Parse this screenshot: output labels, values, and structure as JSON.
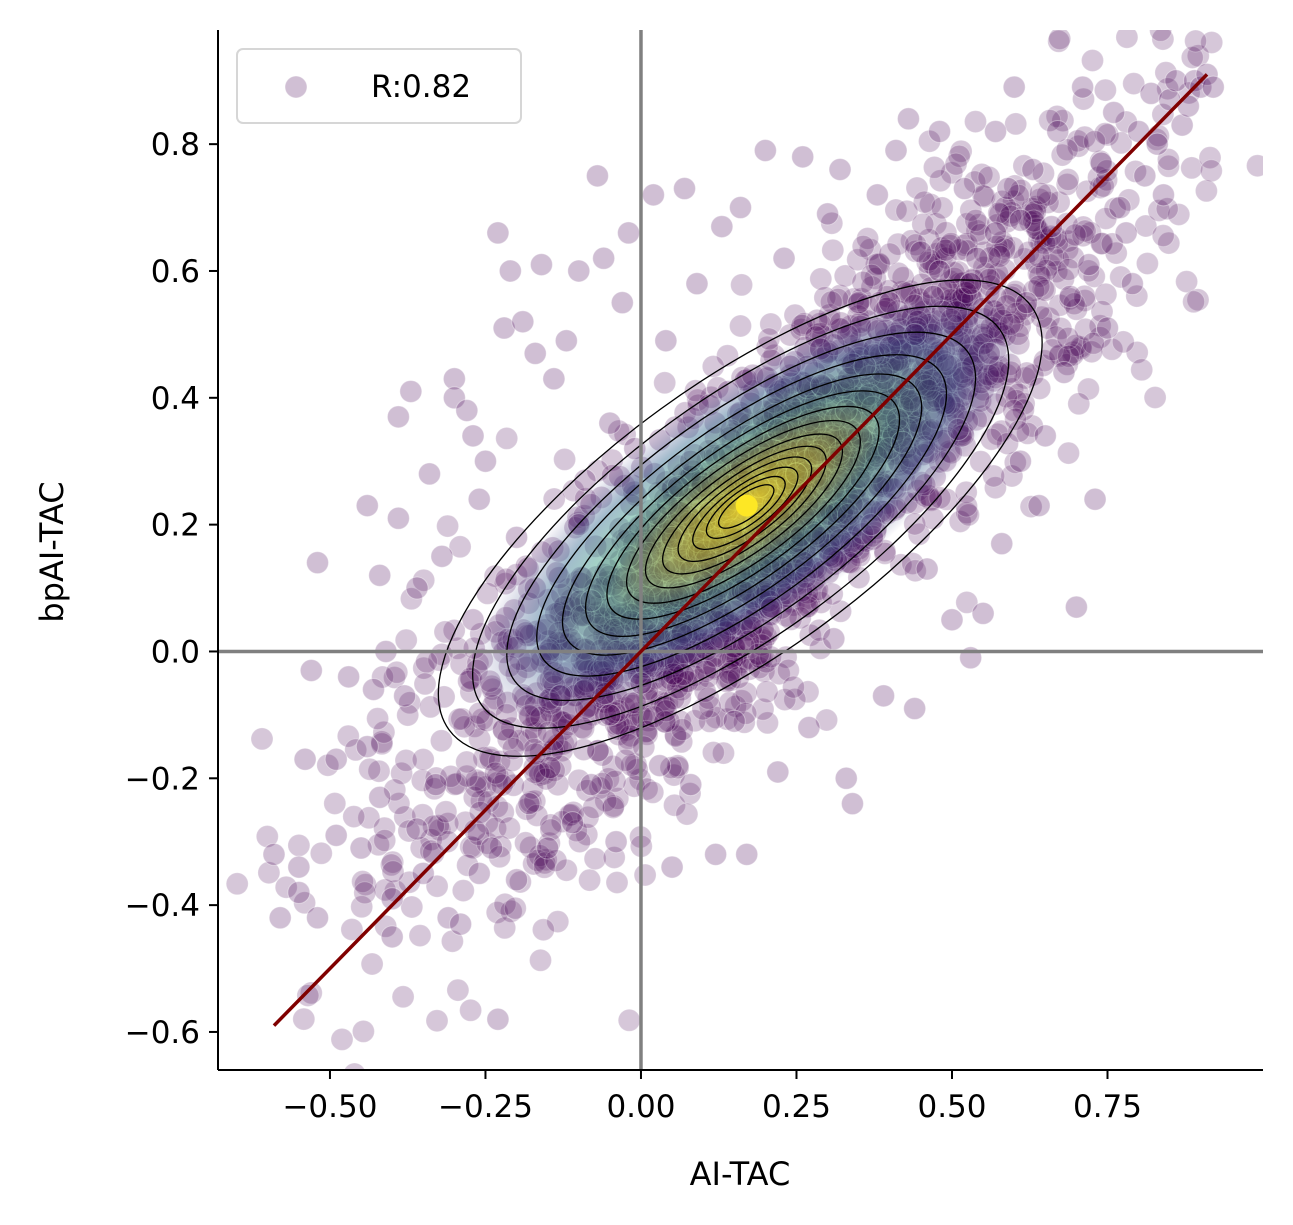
{
  "chart_data": {
    "type": "scatter",
    "xlabel": "AI-TAC",
    "ylabel": "bpAI-TAC",
    "xlim": [
      -0.68,
      1.0
    ],
    "ylim": [
      -0.66,
      0.98
    ],
    "xticks": [
      -0.5,
      -0.25,
      0.0,
      0.25,
      0.5,
      0.75
    ],
    "xtick_labels": [
      "−0.50",
      "−0.25",
      "0.00",
      "0.25",
      "0.50",
      "0.75"
    ],
    "yticks": [
      -0.6,
      -0.4,
      -0.2,
      0.0,
      0.2,
      0.4,
      0.6,
      0.8
    ],
    "ytick_labels": [
      "−0.6",
      "−0.4",
      "−0.2",
      "0.0",
      "0.2",
      "0.4",
      "0.6",
      "0.8"
    ],
    "legend": {
      "label": "R:0.82",
      "placement": "upper-left"
    },
    "reference_lines": {
      "x": 0.0,
      "y": 0.0,
      "color": "#808080"
    },
    "identity_line": {
      "from": [
        -0.59,
        -0.59
      ],
      "to": [
        0.91,
        0.91
      ],
      "color": "#800000"
    },
    "density_peak": {
      "x": 0.17,
      "y": 0.23,
      "color": "#fde725"
    },
    "series": [
      {
        "name": "R:0.82",
        "color": "#440154",
        "points": [
          [
            -0.59,
            -0.32
          ],
          [
            -0.58,
            -0.42
          ],
          [
            -0.55,
            -0.38
          ],
          [
            -0.55,
            -0.34
          ],
          [
            -0.52,
            -0.42
          ],
          [
            -0.52,
            0.14
          ],
          [
            -0.53,
            -0.03
          ],
          [
            -0.54,
            -0.17
          ],
          [
            -0.49,
            -0.17
          ],
          [
            -0.49,
            -0.29
          ],
          [
            -0.47,
            -0.04
          ],
          [
            -0.45,
            -0.31
          ],
          [
            -0.44,
            -0.15
          ],
          [
            -0.43,
            -0.06
          ],
          [
            -0.42,
            -0.23
          ],
          [
            -0.42,
            0.12
          ],
          [
            -0.41,
            0.0
          ],
          [
            -0.4,
            -0.45
          ],
          [
            -0.4,
            -0.39
          ],
          [
            -0.39,
            0.21
          ],
          [
            -0.39,
            0.37
          ],
          [
            -0.38,
            -0.07
          ],
          [
            -0.37,
            0.41
          ],
          [
            -0.36,
            -0.28
          ],
          [
            -0.35,
            -0.35
          ],
          [
            -0.34,
            0.28
          ],
          [
            -0.33,
            -0.21
          ],
          [
            -0.31,
            -0.42
          ],
          [
            -0.3,
            0.43
          ],
          [
            -0.3,
            0.4
          ],
          [
            -0.29,
            -0.43
          ],
          [
            -0.28,
            0.38
          ],
          [
            -0.27,
            0.34
          ],
          [
            -0.26,
            0.24
          ],
          [
            -0.26,
            -0.35
          ],
          [
            -0.25,
            0.3
          ],
          [
            -0.24,
            -0.31
          ],
          [
            -0.23,
            0.66
          ],
          [
            -0.23,
            -0.58
          ],
          [
            -0.22,
            0.51
          ],
          [
            -0.21,
            0.6
          ],
          [
            -0.2,
            -0.36
          ],
          [
            -0.19,
            0.52
          ],
          [
            -0.18,
            -0.24
          ],
          [
            -0.17,
            0.47
          ],
          [
            -0.16,
            0.61
          ],
          [
            -0.15,
            -0.31
          ],
          [
            -0.14,
            0.43
          ],
          [
            -0.12,
            0.49
          ],
          [
            -0.11,
            -0.27
          ],
          [
            -0.1,
            0.6
          ],
          [
            -0.09,
            0.27
          ],
          [
            -0.08,
            -0.21
          ],
          [
            -0.07,
            0.75
          ],
          [
            -0.06,
            0.62
          ],
          [
            -0.05,
            0.36
          ],
          [
            -0.04,
            -0.3
          ],
          [
            -0.03,
            0.55
          ],
          [
            -0.02,
            0.66
          ],
          [
            -0.01,
            0.32
          ],
          [
            0.0,
            -0.05
          ],
          [
            0.02,
            0.72
          ],
          [
            0.03,
            -0.18
          ],
          [
            0.04,
            0.49
          ],
          [
            0.05,
            -0.34
          ],
          [
            0.06,
            0.26
          ],
          [
            0.07,
            0.73
          ],
          [
            0.08,
            -0.21
          ],
          [
            0.09,
            0.58
          ],
          [
            0.1,
            0.11
          ],
          [
            0.12,
            -0.32
          ],
          [
            0.13,
            0.67
          ],
          [
            0.14,
            0.41
          ],
          [
            0.15,
            -0.11
          ],
          [
            0.16,
            0.7
          ],
          [
            0.17,
            -0.32
          ],
          [
            0.18,
            0.34
          ],
          [
            0.2,
            0.79
          ],
          [
            0.21,
            0.07
          ],
          [
            0.22,
            -0.19
          ],
          [
            0.23,
            0.62
          ],
          [
            0.24,
            0.45
          ],
          [
            0.26,
            0.78
          ],
          [
            0.27,
            -0.12
          ],
          [
            0.28,
            0.31
          ],
          [
            0.3,
            0.69
          ],
          [
            0.31,
            0.02
          ],
          [
            0.32,
            0.76
          ],
          [
            0.33,
            -0.2
          ],
          [
            0.34,
            -0.24
          ],
          [
            0.35,
            0.55
          ],
          [
            0.37,
            0.2
          ],
          [
            0.38,
            0.72
          ],
          [
            0.39,
            -0.07
          ],
          [
            0.4,
            0.48
          ],
          [
            0.41,
            0.79
          ],
          [
            0.42,
            0.33
          ],
          [
            0.43,
            0.84
          ],
          [
            0.44,
            -0.09
          ],
          [
            0.45,
            0.63
          ],
          [
            0.46,
            0.13
          ],
          [
            0.47,
            0.56
          ],
          [
            0.48,
            0.82
          ],
          [
            0.5,
            0.05
          ],
          [
            0.51,
            0.35
          ],
          [
            0.52,
            0.73
          ],
          [
            0.53,
            -0.01
          ],
          [
            0.54,
            0.62
          ],
          [
            0.55,
            0.06
          ],
          [
            0.56,
            0.47
          ],
          [
            0.57,
            0.82
          ],
          [
            0.58,
            0.17
          ],
          [
            0.59,
            0.73
          ],
          [
            0.6,
            0.89
          ],
          [
            0.61,
            0.3
          ],
          [
            0.62,
            0.55
          ],
          [
            0.63,
            0.76
          ],
          [
            0.64,
            0.23
          ],
          [
            0.65,
            0.34
          ],
          [
            0.66,
            0.67
          ],
          [
            0.67,
            0.82
          ],
          [
            0.68,
            0.44
          ],
          [
            0.69,
            0.56
          ],
          [
            0.7,
            0.07
          ],
          [
            0.71,
            0.89
          ],
          [
            0.72,
            0.61
          ],
          [
            0.73,
            0.24
          ],
          [
            0.74,
            0.77
          ],
          [
            0.75,
            0.51
          ],
          [
            0.76,
            0.85
          ],
          [
            0.77,
            0.7
          ],
          [
            0.78,
            0.66
          ],
          [
            0.79,
            0.58
          ],
          [
            0.8,
            0.82
          ],
          [
            0.81,
            0.75
          ],
          [
            0.82,
            0.88
          ],
          [
            0.83,
            0.8
          ],
          [
            0.84,
            0.72
          ],
          [
            0.85,
            0.87
          ],
          [
            0.86,
            0.9
          ],
          [
            0.87,
            0.83
          ],
          [
            0.88,
            0.86
          ],
          [
            0.89,
            0.9
          ],
          [
            0.9,
            0.89
          ],
          [
            0.91,
            0.91
          ],
          [
            0.92,
            0.89
          ],
          [
            -0.44,
            0.23
          ],
          [
            -0.36,
            0.1
          ],
          [
            -0.32,
            0.15
          ],
          [
            -0.27,
            0.05
          ],
          [
            -0.2,
            0.18
          ],
          [
            -0.17,
            0.1
          ],
          [
            -0.13,
            -0.07
          ],
          [
            -0.1,
            0.2
          ],
          [
            -0.08,
            0.08
          ],
          [
            -0.05,
            -0.1
          ],
          [
            -0.02,
            0.15
          ],
          [
            0.01,
            0.05
          ],
          [
            0.05,
            0.18
          ],
          [
            0.08,
            0.3
          ],
          [
            0.11,
            0.22
          ],
          [
            0.15,
            0.15
          ],
          [
            0.19,
            0.26
          ],
          [
            0.22,
            0.35
          ],
          [
            0.25,
            0.28
          ],
          [
            0.29,
            0.42
          ],
          [
            0.33,
            0.38
          ],
          [
            0.36,
            0.45
          ],
          [
            0.4,
            0.55
          ],
          [
            0.44,
            0.5
          ],
          [
            0.48,
            0.6
          ],
          [
            0.53,
            0.58
          ],
          [
            0.57,
            0.66
          ],
          [
            0.61,
            0.68
          ]
        ]
      }
    ]
  }
}
